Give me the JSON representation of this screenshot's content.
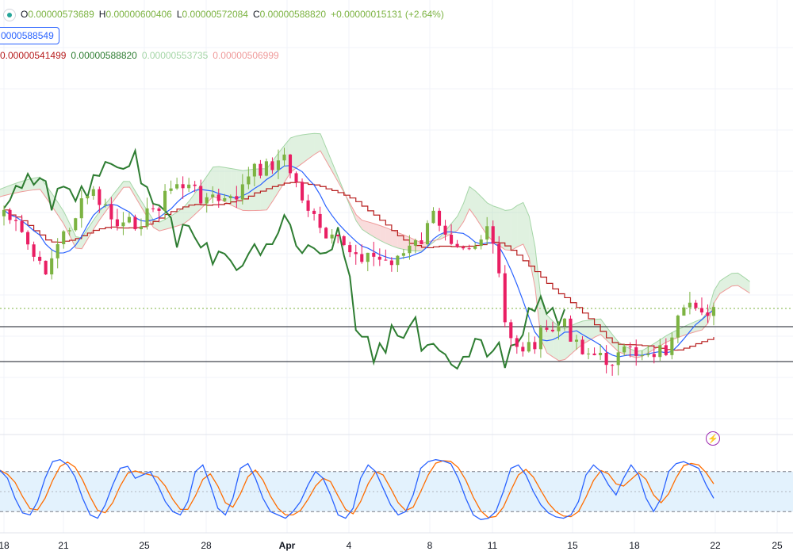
{
  "legend": {
    "open_label": "O",
    "open": "0.00000573689",
    "high_label": "H",
    "high": "0.00000600406",
    "low_label": "L",
    "low": "0.00000572084",
    "close_label": "C",
    "close": "0.00000588820",
    "change": "+0.00000015131 (+2.64%)"
  },
  "price_tag": "0000588549",
  "ichimoku": {
    "conversion": "0.00000541499",
    "lagging": "0.00000588820",
    "lead_a": "0.00000553735",
    "lead_b": "0.00000506999",
    "colors": {
      "conversion": "#b71c1c",
      "lagging": "#2e7d32",
      "lead_a": "#a5d6a7",
      "lead_b": "#ef9a9a",
      "base": "#2962ff"
    }
  },
  "colors": {
    "up": "#7cb342",
    "down": "#e91e63",
    "stoch_k": "#2962ff",
    "stoch_d": "#ff6d00",
    "band": "#e3f2fd"
  },
  "chart_data": {
    "type": "line",
    "x_ticks": [
      "18",
      "21",
      "25",
      "28",
      "Apr",
      "4",
      "8",
      "11",
      "15",
      "18",
      "22",
      "25"
    ],
    "horizontal_levels": [
      "support-upper",
      "support-lower"
    ],
    "stochastic": {
      "upper": 80,
      "lower": 20,
      "ylim": [
        0,
        100
      ],
      "k": [
        82,
        70,
        40,
        18,
        15,
        35,
        70,
        95,
        98,
        90,
        72,
        40,
        15,
        10,
        30,
        60,
        85,
        88,
        70,
        75,
        80,
        60,
        35,
        20,
        15,
        35,
        80,
        90,
        60,
        25,
        15,
        40,
        85,
        92,
        70,
        40,
        20,
        15,
        10,
        20,
        35,
        60,
        80,
        70,
        45,
        15,
        10,
        25,
        70,
        90,
        80,
        55,
        30,
        15,
        20,
        45,
        85,
        95,
        98,
        96,
        92,
        70,
        40,
        15,
        8,
        10,
        20,
        50,
        85,
        90,
        75,
        50,
        30,
        18,
        12,
        10,
        15,
        35,
        75,
        90,
        80,
        60,
        45,
        70,
        90,
        75,
        40,
        20,
        40,
        80,
        92,
        95,
        90,
        85,
        60,
        40
      ]
    }
  }
}
